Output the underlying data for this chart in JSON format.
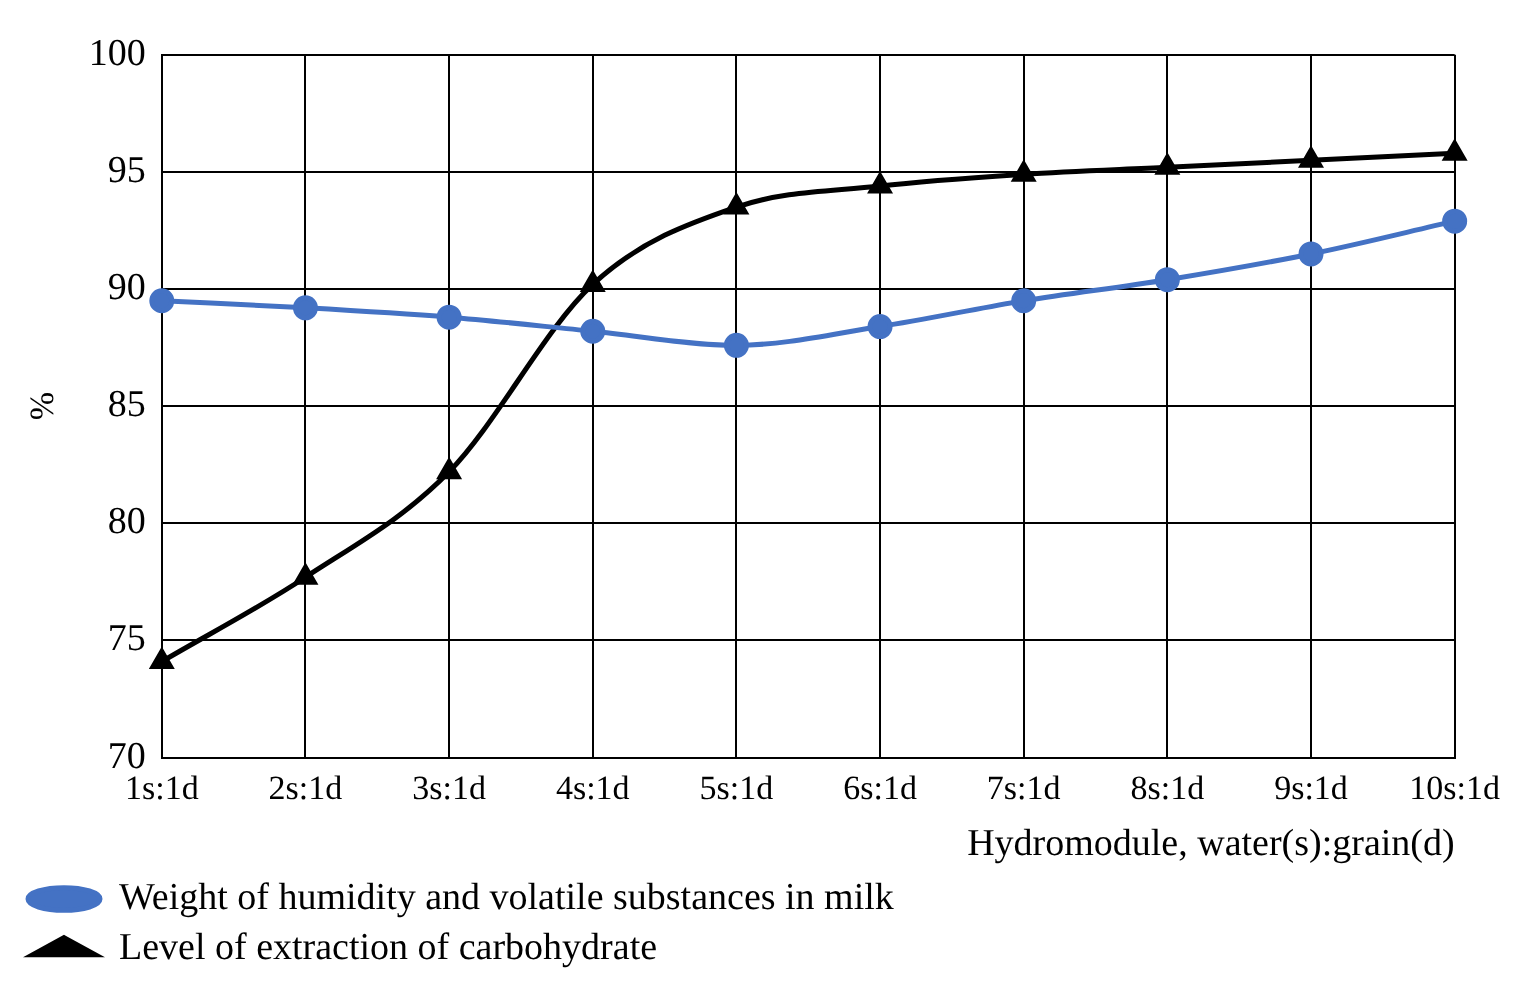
{
  "chart_data": {
    "type": "line",
    "xlabel": "Hydromodule, water(s):grain(d)",
    "ylabel": "%",
    "categories": [
      "1s:1d",
      "2s:1d",
      "3s:1d",
      "4s:1d",
      "5s:1d",
      "6s:1d",
      "7s:1d",
      "8s:1d",
      "9s:1d",
      "10s:1d"
    ],
    "series": [
      {
        "name": "Weight of humidity and volatile substances in milk",
        "color": "#4472c4",
        "marker": "circle",
        "values": [
          89.5,
          89.2,
          88.8,
          88.2,
          87.6,
          88.4,
          89.5,
          90.4,
          91.5,
          92.9
        ]
      },
      {
        "name": "Level of extraction of carbohydrate",
        "color": "#000000",
        "marker": "triangle",
        "values": [
          74.1,
          77.7,
          82.2,
          90.2,
          93.5,
          94.4,
          94.9,
          95.2,
          95.5,
          95.8
        ]
      }
    ],
    "ylim": [
      70,
      100
    ],
    "yticks": [
      70,
      75,
      80,
      85,
      90,
      95,
      100
    ],
    "grid": true,
    "legend": "bottom"
  }
}
